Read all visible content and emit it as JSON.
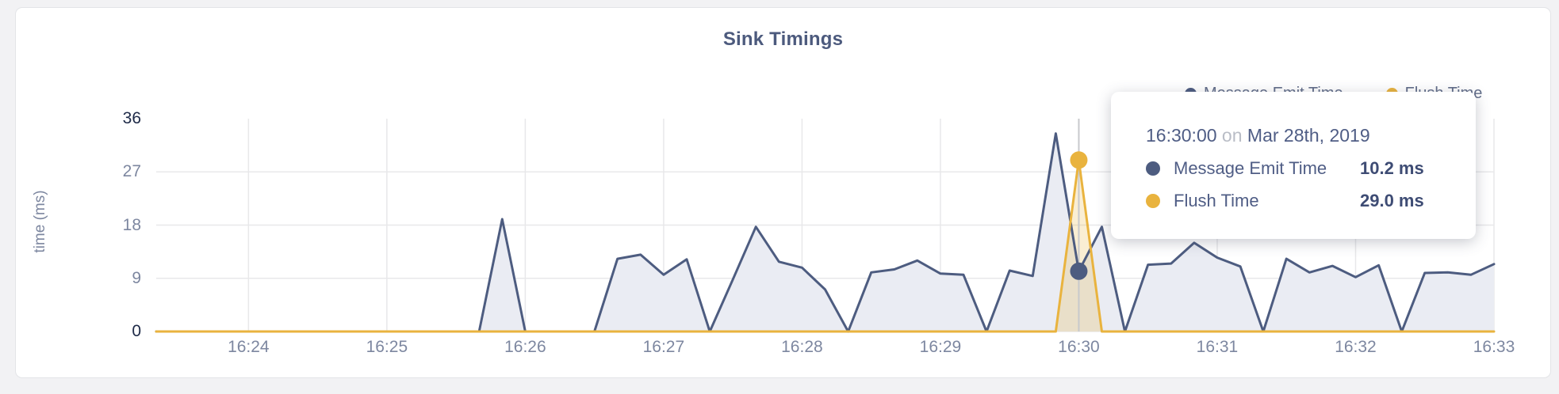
{
  "page": {
    "background": "#f2f2f4",
    "card_background": "#ffffff"
  },
  "chart_data": {
    "type": "area",
    "title": "Sink Timings",
    "xlabel": "",
    "ylabel": "time (ms)",
    "grid": true,
    "legend_position": "top-right",
    "ylim": [
      0,
      36
    ],
    "y_ticks": [
      0,
      9,
      18,
      27,
      36
    ],
    "x_start": "16:23:20",
    "x_end": "16:33:00",
    "interval_seconds": 10,
    "x_ticks": [
      {
        "label": "16:24",
        "time": "16:24:00"
      },
      {
        "label": "16:25",
        "time": "16:25:00"
      },
      {
        "label": "16:26",
        "time": "16:26:00"
      },
      {
        "label": "16:27",
        "time": "16:27:00"
      },
      {
        "label": "16:28",
        "time": "16:28:00"
      },
      {
        "label": "16:29",
        "time": "16:29:00"
      },
      {
        "label": "16:30",
        "time": "16:30:00"
      },
      {
        "label": "16:31",
        "time": "16:31:00"
      },
      {
        "label": "16:32",
        "time": "16:32:00"
      },
      {
        "label": "16:33",
        "time": "16:33:00"
      }
    ],
    "series": [
      {
        "name": "Message Emit Time",
        "color": "#4d5c80",
        "fill": "#eaecf3",
        "values": [
          0,
          0,
          0,
          0,
          0,
          0,
          0,
          0,
          0,
          0,
          0,
          0,
          0,
          0,
          0,
          19,
          0,
          0,
          0,
          0,
          12.3,
          13,
          9.6,
          12.2,
          0,
          8.8,
          17.7,
          11.8,
          10.8,
          7.1,
          0,
          10,
          10.5,
          12,
          9.8,
          9.6,
          0,
          10.3,
          9.4,
          33.5,
          10.2,
          17.7,
          0,
          11.3,
          11.5,
          15,
          12.5,
          11,
          0,
          12.3,
          10,
          11.1,
          9.2,
          11.2,
          0,
          9.9,
          10,
          9.6,
          11.4
        ]
      },
      {
        "name": "Flush Time",
        "color": "#e9b33e",
        "fill": "rgba(233,178,56,0.22)",
        "values": [
          0,
          0,
          0,
          0,
          0,
          0,
          0,
          0,
          0,
          0,
          0,
          0,
          0,
          0,
          0,
          0,
          0,
          0,
          0,
          0,
          0,
          0,
          0,
          0,
          0,
          0,
          0,
          0,
          0,
          0,
          0,
          0,
          0,
          0,
          0,
          0,
          0,
          0,
          0,
          0,
          29,
          0,
          0,
          0,
          0,
          0,
          0,
          0,
          0,
          0,
          0,
          0,
          0,
          0,
          0,
          0,
          0,
          0,
          0
        ]
      }
    ],
    "colors": {
      "gridline": "#e8e8ea",
      "crosshair": "#c8c9cc",
      "tick_dark": "#1d2947",
      "tick_light": "#7d87a0"
    }
  },
  "legend": {
    "items": [
      {
        "label": "Message Emit Time",
        "color": "#4d5c80"
      },
      {
        "label": "Flush Time",
        "color": "#e9b33e"
      }
    ]
  },
  "crosshair": {
    "time": "16:30:00",
    "points": [
      {
        "series": "Message Emit Time",
        "value": 10.2,
        "color": "#4d5c80"
      },
      {
        "series": "Flush Time",
        "value": 29.0,
        "color": "#e9b33e"
      }
    ]
  },
  "tooltip": {
    "time": "16:30:00",
    "connector": "on",
    "date": "Mar 28th, 2019",
    "rows": [
      {
        "label": "Message Emit Time",
        "value": "10.2 ms",
        "color": "#4d5c80"
      },
      {
        "label": "Flush Time",
        "value": "29.0 ms",
        "color": "#e9b33e"
      }
    ]
  }
}
